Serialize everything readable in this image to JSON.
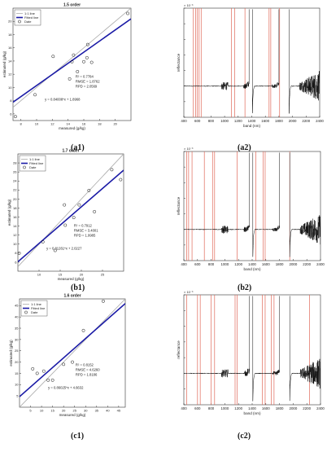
{
  "figure": {
    "panel_labels": [
      "(a1)",
      "(a2)",
      "(b1)",
      "(b2)",
      "(c1)",
      "(c2)"
    ]
  },
  "chart_data": [
    {
      "id": "a1",
      "type": "scatter",
      "title": "1.5 order",
      "xlabel": "measured (g/kg)",
      "ylabel": "estimated (g/kg)",
      "xlim": [
        7,
        22
      ],
      "ylim": [
        5,
        22
      ],
      "xticks": [
        8,
        10,
        12,
        14,
        16,
        18,
        20
      ],
      "yticks": [
        6,
        8,
        10,
        12,
        14,
        16,
        18,
        20
      ],
      "legend": [
        "1:1 line",
        "Fitted line",
        "Date"
      ],
      "legend_position": "top-left",
      "stats": [
        "R² = 0.7784",
        "RMSE = 1.8762",
        "RPD = 2.0569"
      ],
      "equation": "y = 0.84008*x + 1.8968",
      "fit": {
        "slope": 0.84008,
        "intercept": 1.8968
      },
      "points": [
        [
          7.3,
          5.6
        ],
        [
          9.8,
          8.9
        ],
        [
          12.1,
          14.7
        ],
        [
          14.2,
          11.3
        ],
        [
          14.5,
          13.9
        ],
        [
          14.7,
          14.9
        ],
        [
          15.2,
          12.4
        ],
        [
          16.0,
          13.9
        ],
        [
          16.4,
          14.5
        ],
        [
          16.5,
          16.5
        ],
        [
          17.0,
          13.8
        ],
        [
          21.6,
          21.2
        ]
      ]
    },
    {
      "id": "a2",
      "type": "line",
      "title": "",
      "xlabel": "band (nm)",
      "ylabel": "reflectance",
      "exponent": "× 10⁻³",
      "xlim": [
        400,
        2400
      ],
      "ylim": [
        -4,
        10
      ],
      "xticks": [
        400,
        600,
        800,
        1000,
        1200,
        1400,
        1600,
        1800,
        2000,
        2200,
        2400
      ],
      "yticks": [
        -4,
        -2,
        0,
        2,
        4,
        6,
        8,
        10
      ],
      "gaps": [
        [
          1360,
          1410
        ],
        [
          1800,
          1950
        ]
      ],
      "selected_bands_nm": [
        540,
        575,
        600,
        625,
        655,
        1100,
        1150,
        1300,
        1655,
        1680,
        1810
      ]
    },
    {
      "id": "b1",
      "type": "scatter",
      "title": "1.7 order",
      "xlabel": "measured (g/kg)",
      "ylabel": "estimated (g/kg)",
      "xlim": [
        5,
        30
      ],
      "ylim": [
        4,
        30
      ],
      "xticks": [
        10,
        15,
        20,
        25
      ],
      "yticks": [
        6,
        8,
        10,
        12,
        14,
        16,
        18,
        20,
        22,
        24,
        26,
        28
      ],
      "legend": [
        "1:1 line",
        "Fitted line",
        "Date"
      ],
      "legend_position": "top-left",
      "stats": [
        "R² = 0.7912",
        "RMSE = 3.4001",
        "RPD = 1.9985"
      ],
      "equation": "y = 0.81261*x + 2.0227",
      "fit": {
        "slope": 0.81261,
        "intercept": 2.0227
      },
      "points": [
        [
          5.3,
          8.0
        ],
        [
          10.9,
          10.5
        ],
        [
          13.8,
          8.6
        ],
        [
          16.0,
          18.7
        ],
        [
          16.2,
          14.2
        ],
        [
          18.2,
          15.9
        ],
        [
          19.5,
          18.7
        ],
        [
          21.8,
          21.9
        ],
        [
          23.1,
          17.2
        ],
        [
          27.2,
          26.5
        ],
        [
          29.3,
          24.3
        ]
      ]
    },
    {
      "id": "b2",
      "type": "line",
      "title": "",
      "xlabel": "band (nm)",
      "ylabel": "reflectance",
      "exponent": "× 10⁻³",
      "xlim": [
        400,
        2400
      ],
      "ylim": [
        -4,
        10
      ],
      "xticks": [
        400,
        600,
        800,
        1000,
        1200,
        1400,
        1600,
        1800,
        2000,
        2200,
        2400
      ],
      "yticks": [
        -4,
        -2,
        0,
        2,
        4,
        6,
        8,
        10
      ],
      "gaps": [
        [
          1360,
          1410
        ],
        [
          1800,
          1950
        ]
      ],
      "selected_bands_nm": [
        440,
        470,
        520,
        700,
        820,
        850,
        1180,
        1455,
        1560,
        1590,
        1950
      ]
    },
    {
      "id": "c1",
      "type": "scatter",
      "title": "1.6 order",
      "xlabel": "measured (g/kg)",
      "ylabel": "estimated (g/kg)",
      "xlim": [
        0,
        48
      ],
      "ylim": [
        0,
        48
      ],
      "xticks": [
        5,
        10,
        15,
        20,
        25,
        30,
        35,
        40,
        45
      ],
      "yticks": [
        5,
        10,
        15,
        20,
        25,
        30,
        35,
        40,
        45
      ],
      "legend": [
        "1:1 line",
        "Fitted line",
        "Date"
      ],
      "legend_position": "top-left",
      "stats": [
        "R² = 0.8152",
        "RMSE = 4.6260",
        "RPD = 1.8186"
      ],
      "equation": "y = 0.86025*x + 4.6632",
      "fit": {
        "slope": 0.86025,
        "intercept": 4.6632
      },
      "points": [
        [
          6,
          17
        ],
        [
          8,
          15
        ],
        [
          11,
          16
        ],
        [
          13,
          12
        ],
        [
          15,
          12
        ],
        [
          20,
          19
        ],
        [
          24,
          20
        ],
        [
          29,
          34
        ],
        [
          38,
          47
        ]
      ]
    },
    {
      "id": "c2",
      "type": "line",
      "title": "",
      "xlabel": "band (nm)",
      "ylabel": "reflectance",
      "exponent": "× 10⁻³",
      "xlim": [
        400,
        2400
      ],
      "ylim": [
        -4,
        10
      ],
      "xticks": [
        400,
        600,
        800,
        1000,
        1200,
        1400,
        1600,
        1800,
        2000,
        2200,
        2400
      ],
      "yticks": [
        -4,
        -2,
        0,
        2,
        4,
        6,
        8,
        10
      ],
      "gaps": [
        [
          1360,
          1410
        ],
        [
          1800,
          1950
        ]
      ],
      "selected_bands_nm": [
        440,
        600,
        640,
        800,
        850,
        1150,
        1180,
        1550,
        1590,
        1680,
        1720,
        2240
      ]
    }
  ]
}
